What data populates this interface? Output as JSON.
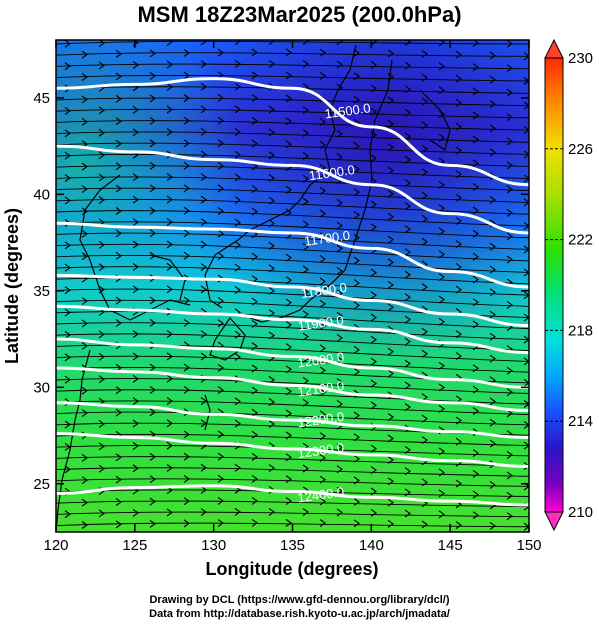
{
  "title": "MSM 18Z23Mar2025 (200.0hPa)",
  "credits": {
    "line1": "Drawing by DCL (https://www.gfd-dennou.org/library/dcl/)",
    "line2": "Data from http://database.rish.kyoto-u.ac.jp/arch/jmadata/"
  },
  "axes": {
    "xlabel": "Longitude (degrees)",
    "ylabel": "Latitude  (degrees)",
    "xlim": [
      120,
      150
    ],
    "ylim": [
      22.5,
      48
    ],
    "xticks": [
      120,
      125,
      130,
      135,
      140,
      145,
      150
    ],
    "yticks": [
      25,
      30,
      35,
      40,
      45
    ]
  },
  "colorbar": {
    "min": 210,
    "max": 230,
    "tick_labels": [
      "230",
      "226",
      "222",
      "218",
      "214",
      "210"
    ],
    "tick_values": [
      230,
      226,
      222,
      218,
      214,
      210
    ],
    "colors": [
      "#ff2a00",
      "#ff8c00",
      "#f0e000",
      "#a8e000",
      "#2ee000",
      "#00e07a",
      "#00e0d8",
      "#00a8ff",
      "#1a50ff",
      "#2a14c8",
      "#7a00c0",
      "#ff00d0"
    ]
  },
  "contours": [
    {
      "label": "11500.0",
      "pts": [
        [
          120,
          45.5
        ],
        [
          125,
          45.7
        ],
        [
          130,
          46
        ],
        [
          135,
          45.5
        ],
        [
          140,
          43.5
        ],
        [
          145,
          41.5
        ],
        [
          150,
          40.5
        ]
      ],
      "label_at": [
        138.5,
        44.3
      ]
    },
    {
      "label": "11600.0",
      "pts": [
        [
          120,
          42.5
        ],
        [
          125,
          42.2
        ],
        [
          130,
          41.8
        ],
        [
          135,
          41.5
        ],
        [
          140,
          40.5
        ],
        [
          145,
          39
        ],
        [
          150,
          38
        ]
      ],
      "label_at": [
        137.5,
        41.1
      ]
    },
    {
      "label": "11700.0",
      "pts": [
        [
          120,
          38.5
        ],
        [
          125,
          38.3
        ],
        [
          130,
          38.2
        ],
        [
          135,
          38
        ],
        [
          140,
          37.2
        ],
        [
          145,
          36
        ],
        [
          150,
          35.2
        ]
      ],
      "label_at": [
        137.2,
        37.7
      ]
    },
    {
      "label": "11800.0",
      "pts": [
        [
          120,
          35.8
        ],
        [
          125,
          35.7
        ],
        [
          130,
          35.6
        ],
        [
          135,
          35.2
        ],
        [
          140,
          34.5
        ],
        [
          145,
          33.8
        ],
        [
          150,
          33.2
        ]
      ],
      "label_at": [
        137,
        35
      ]
    },
    {
      "label": "11900.0",
      "pts": [
        [
          120,
          34.2
        ],
        [
          125,
          34
        ],
        [
          130,
          33.8
        ],
        [
          135,
          33.5
        ],
        [
          140,
          33
        ],
        [
          145,
          32.3
        ],
        [
          150,
          31.8
        ]
      ],
      "label_at": [
        136.8,
        33.3
      ]
    },
    {
      "label": "12000.0",
      "pts": [
        [
          120,
          32.5
        ],
        [
          125,
          32.2
        ],
        [
          130,
          32
        ],
        [
          135,
          31.6
        ],
        [
          140,
          31
        ],
        [
          145,
          30.4
        ],
        [
          150,
          30
        ]
      ],
      "label_at": [
        136.8,
        31.4
      ]
    },
    {
      "label": "12100.0",
      "pts": [
        [
          120,
          31
        ],
        [
          125,
          30.8
        ],
        [
          130,
          30.5
        ],
        [
          135,
          30.1
        ],
        [
          140,
          29.6
        ],
        [
          145,
          29.2
        ],
        [
          150,
          28.8
        ]
      ],
      "label_at": [
        136.8,
        29.9
      ]
    },
    {
      "label": "12200.0",
      "pts": [
        [
          120,
          29.2
        ],
        [
          125,
          29
        ],
        [
          130,
          28.6
        ],
        [
          135,
          28.3
        ],
        [
          140,
          28
        ],
        [
          145,
          27.7
        ],
        [
          150,
          27.4
        ]
      ],
      "label_at": [
        136.8,
        28.3
      ]
    },
    {
      "label": "12300.0",
      "pts": [
        [
          120,
          27.6
        ],
        [
          125,
          27.4
        ],
        [
          130,
          27.1
        ],
        [
          135,
          26.8
        ],
        [
          140,
          26.5
        ],
        [
          145,
          26.2
        ],
        [
          150,
          25.9
        ]
      ],
      "label_at": [
        136.8,
        26.7
      ]
    },
    {
      "label": "12400.0",
      "pts": [
        [
          120,
          24.5
        ],
        [
          125,
          24.8
        ],
        [
          130,
          24.9
        ],
        [
          135,
          24.6
        ],
        [
          140,
          24.3
        ],
        [
          145,
          24.1
        ],
        [
          150,
          23.9
        ]
      ],
      "label_at": [
        136.8,
        24.4
      ]
    }
  ]
}
